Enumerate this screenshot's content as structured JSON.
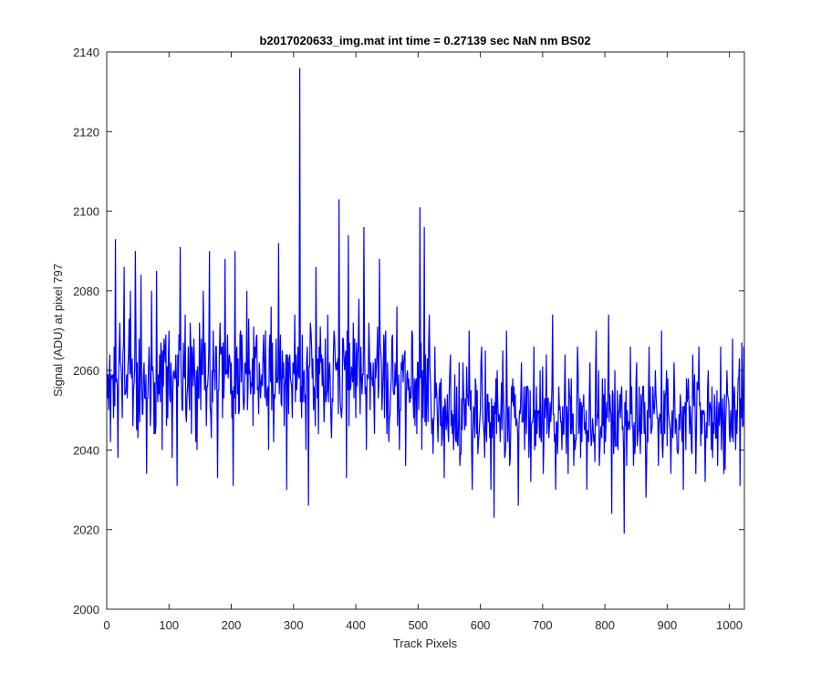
{
  "chart_data": {
    "type": "line",
    "title": "b2017020633_img.mat int time = 0.27139 sec  NaN nm BS02",
    "xlabel": "Track Pixels",
    "ylabel": "Signal (ADU) at pixel 797",
    "xlim": [
      0,
      1024
    ],
    "ylim": [
      2000,
      2140
    ],
    "xticks": [
      0,
      100,
      200,
      300,
      400,
      500,
      600,
      700,
      800,
      900,
      1000
    ],
    "yticks": [
      2000,
      2020,
      2040,
      2060,
      2080,
      2100,
      2120,
      2140
    ],
    "grid": false,
    "legend": "none",
    "line_color": "#0000ff",
    "series": [
      {
        "n_points": 1024,
        "anchors": [
          [
            0,
            2061
          ],
          [
            3,
            2050
          ],
          [
            6,
            2042
          ],
          [
            9,
            2058
          ],
          [
            12,
            2066
          ],
          [
            14,
            2093
          ],
          [
            18,
            2038
          ],
          [
            21,
            2072
          ],
          [
            25,
            2048
          ],
          [
            28,
            2086
          ],
          [
            30,
            2054
          ],
          [
            35,
            2064
          ],
          [
            38,
            2080
          ],
          [
            42,
            2046
          ],
          [
            46,
            2090
          ],
          [
            50,
            2043
          ],
          [
            55,
            2084
          ],
          [
            60,
            2062
          ],
          [
            64,
            2034
          ],
          [
            68,
            2066
          ],
          [
            72,
            2080
          ],
          [
            76,
            2044
          ],
          [
            80,
            2085
          ],
          [
            84,
            2054
          ],
          [
            89,
            2040
          ],
          [
            92,
            2068
          ],
          [
            96,
            2046
          ],
          [
            100,
            2070
          ],
          [
            105,
            2038
          ],
          [
            110,
            2058
          ],
          [
            113,
            2031
          ],
          [
            118,
            2091
          ],
          [
            122,
            2050
          ],
          [
            126,
            2074
          ],
          [
            130,
            2056
          ],
          [
            136,
            2044
          ],
          [
            140,
            2068
          ],
          [
            145,
            2040
          ],
          [
            150,
            2062
          ],
          [
            155,
            2080
          ],
          [
            160,
            2046
          ],
          [
            165,
            2090
          ],
          [
            170,
            2052
          ],
          [
            175,
            2066
          ],
          [
            178,
            2033
          ],
          [
            182,
            2072
          ],
          [
            186,
            2048
          ],
          [
            190,
            2088
          ],
          [
            195,
            2058
          ],
          [
            200,
            2062
          ],
          [
            203,
            2031
          ],
          [
            206,
            2090
          ],
          [
            210,
            2054
          ],
          [
            215,
            2070
          ],
          [
            220,
            2050
          ],
          [
            225,
            2080
          ],
          [
            230,
            2060
          ],
          [
            235,
            2046
          ],
          [
            240,
            2068
          ],
          [
            245,
            2062
          ],
          [
            250,
            2056
          ],
          [
            255,
            2070
          ],
          [
            260,
            2040
          ],
          [
            264,
            2076
          ],
          [
            268,
            2042
          ],
          [
            272,
            2068
          ],
          [
            276,
            2092
          ],
          [
            280,
            2052
          ],
          [
            284,
            2062
          ],
          [
            289,
            2030
          ],
          [
            294,
            2064
          ],
          [
            298,
            2048
          ],
          [
            302,
            2074
          ],
          [
            306,
            2058
          ],
          [
            310,
            2136
          ],
          [
            313,
            2048
          ],
          [
            317,
            2060
          ],
          [
            320,
            2040
          ],
          [
            324,
            2026
          ],
          [
            328,
            2070
          ],
          [
            332,
            2050
          ],
          [
            336,
            2086
          ],
          [
            340,
            2044
          ],
          [
            345,
            2064
          ],
          [
            350,
            2054
          ],
          [
            355,
            2074
          ],
          [
            360,
            2048
          ],
          [
            365,
            2070
          ],
          [
            370,
            2060
          ],
          [
            373,
            2103
          ],
          [
            376,
            2050
          ],
          [
            380,
            2068
          ],
          [
            385,
            2033
          ],
          [
            388,
            2094
          ],
          [
            392,
            2056
          ],
          [
            396,
            2072
          ],
          [
            400,
            2048
          ],
          [
            405,
            2078
          ],
          [
            410,
            2054
          ],
          [
            413,
            2096
          ],
          [
            417,
            2040
          ],
          [
            421,
            2072
          ],
          [
            425,
            2058
          ],
          [
            430,
            2044
          ],
          [
            434,
            2064
          ],
          [
            438,
            2088
          ],
          [
            442,
            2050
          ],
          [
            448,
            2070
          ],
          [
            453,
            2042
          ],
          [
            458,
            2068
          ],
          [
            462,
            2054
          ],
          [
            466,
            2076
          ],
          [
            470,
            2040
          ],
          [
            475,
            2064
          ],
          [
            480,
            2036
          ],
          [
            485,
            2058
          ],
          [
            490,
            2070
          ],
          [
            495,
            2046
          ],
          [
            500,
            2062
          ],
          [
            503,
            2101
          ],
          [
            506,
            2040
          ],
          [
            510,
            2096
          ],
          [
            514,
            2054
          ],
          [
            518,
            2074
          ],
          [
            522,
            2044
          ],
          [
            527,
            2066
          ],
          [
            532,
            2042
          ],
          [
            537,
            2058
          ],
          [
            542,
            2033
          ],
          [
            547,
            2054
          ],
          [
            552,
            2064
          ],
          [
            557,
            2040
          ],
          [
            562,
            2056
          ],
          [
            567,
            2036
          ],
          [
            572,
            2062
          ],
          [
            577,
            2046
          ],
          [
            582,
            2070
          ],
          [
            587,
            2030
          ],
          [
            592,
            2058
          ],
          [
            597,
            2042
          ],
          [
            602,
            2066
          ],
          [
            607,
            2038
          ],
          [
            612,
            2054
          ],
          [
            617,
            2030
          ],
          [
            622,
            2023
          ],
          [
            627,
            2060
          ],
          [
            632,
            2042
          ],
          [
            637,
            2054
          ],
          [
            642,
            2070
          ],
          [
            647,
            2036
          ],
          [
            652,
            2058
          ],
          [
            657,
            2046
          ],
          [
            661,
            2026
          ],
          [
            666,
            2062
          ],
          [
            671,
            2040
          ],
          [
            676,
            2056
          ],
          [
            681,
            2032
          ],
          [
            686,
            2066
          ],
          [
            691,
            2044
          ],
          [
            696,
            2060
          ],
          [
            701,
            2034
          ],
          [
            706,
            2064
          ],
          [
            711,
            2046
          ],
          [
            716,
            2074
          ],
          [
            721,
            2030
          ],
          [
            726,
            2056
          ],
          [
            731,
            2040
          ],
          [
            736,
            2064
          ],
          [
            741,
            2034
          ],
          [
            746,
            2058
          ],
          [
            751,
            2044
          ],
          [
            756,
            2066
          ],
          [
            761,
            2038
          ],
          [
            766,
            2054
          ],
          [
            771,
            2030
          ],
          [
            776,
            2062
          ],
          [
            781,
            2046
          ],
          [
            786,
            2070
          ],
          [
            791,
            2036
          ],
          [
            796,
            2058
          ],
          [
            801,
            2042
          ],
          [
            806,
            2074
          ],
          [
            811,
            2024
          ],
          [
            816,
            2060
          ],
          [
            821,
            2040
          ],
          [
            826,
            2054
          ],
          [
            831,
            2019
          ],
          [
            836,
            2050
          ],
          [
            841,
            2066
          ],
          [
            846,
            2036
          ],
          [
            851,
            2062
          ],
          [
            856,
            2044
          ],
          [
            861,
            2056
          ],
          [
            866,
            2028
          ],
          [
            871,
            2066
          ],
          [
            876,
            2046
          ],
          [
            881,
            2060
          ],
          [
            886,
            2036
          ],
          [
            891,
            2070
          ],
          [
            896,
            2044
          ],
          [
            901,
            2058
          ],
          [
            906,
            2034
          ],
          [
            911,
            2062
          ],
          [
            916,
            2040
          ],
          [
            921,
            2054
          ],
          [
            926,
            2030
          ],
          [
            931,
            2058
          ],
          [
            936,
            2044
          ],
          [
            941,
            2064
          ],
          [
            946,
            2034
          ],
          [
            951,
            2066
          ],
          [
            956,
            2044
          ],
          [
            961,
            2032
          ],
          [
            966,
            2060
          ],
          [
            971,
            2040
          ],
          [
            976,
            2054
          ],
          [
            981,
            2036
          ],
          [
            986,
            2066
          ],
          [
            991,
            2034
          ],
          [
            996,
            2060
          ],
          [
            1001,
            2042
          ],
          [
            1005,
            2068
          ],
          [
            1010,
            2040
          ],
          [
            1014,
            2058
          ],
          [
            1017,
            2031
          ],
          [
            1020,
            2067
          ],
          [
            1023,
            2066
          ]
        ],
        "noise": {
          "baseline": [
            [
              0,
              2058
            ],
            [
              300,
              2060
            ],
            [
              450,
              2058
            ],
            [
              560,
              2050
            ],
            [
              700,
              2048
            ],
            [
              1023,
              2049
            ]
          ],
          "amplitude": 11
        }
      }
    ]
  }
}
